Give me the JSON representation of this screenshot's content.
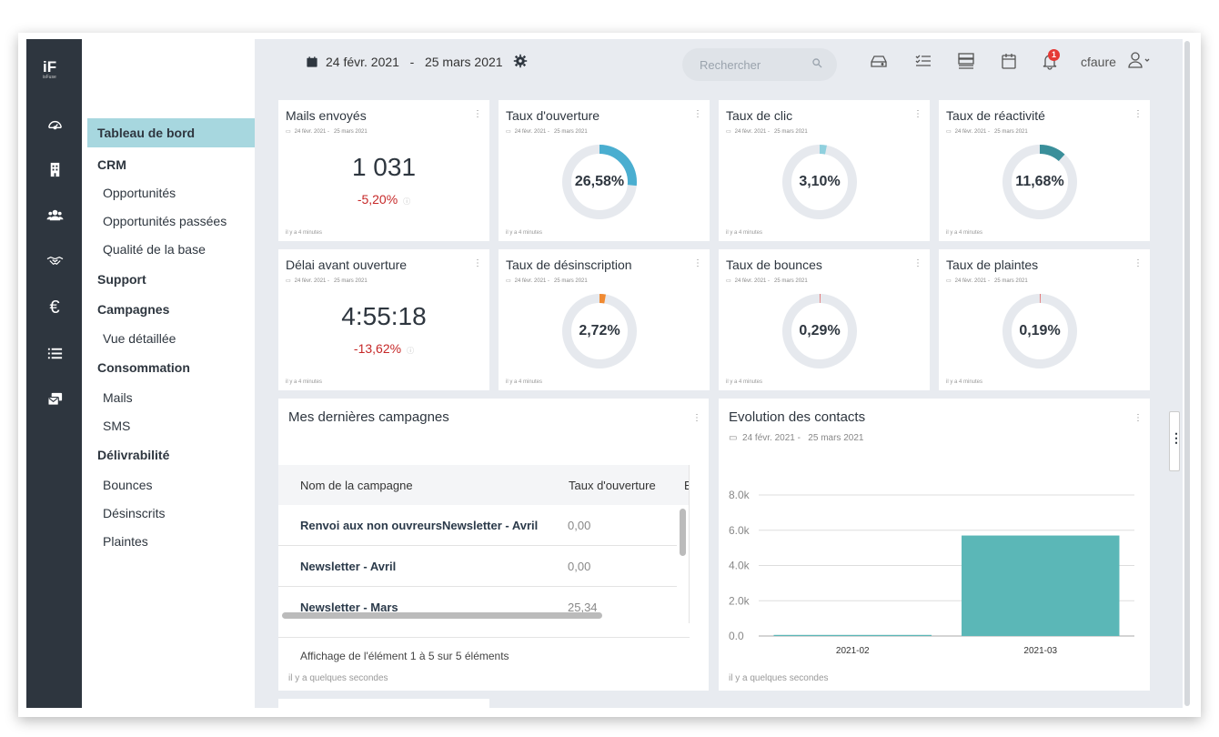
{
  "app": {
    "logo": "iF",
    "logo_sub": "isFuse"
  },
  "sidebar": {
    "items": [
      {
        "label": "Tableau de bord",
        "type": "active"
      },
      {
        "label": "CRM",
        "type": "head"
      },
      {
        "label": "Opportunités",
        "type": "sub"
      },
      {
        "label": "Opportunités passées",
        "type": "sub"
      },
      {
        "label": "Qualité de la base",
        "type": "sub"
      },
      {
        "label": "Support",
        "type": "head"
      },
      {
        "label": "Campagnes",
        "type": "head"
      },
      {
        "label": "Vue détaillée",
        "type": "sub"
      },
      {
        "label": "Consommation",
        "type": "head"
      },
      {
        "label": "Mails",
        "type": "sub"
      },
      {
        "label": "SMS",
        "type": "sub"
      },
      {
        "label": "Délivrabilité",
        "type": "head"
      },
      {
        "label": "Bounces",
        "type": "sub"
      },
      {
        "label": "Désinscrits",
        "type": "sub"
      },
      {
        "label": "Plaintes",
        "type": "sub"
      }
    ]
  },
  "header": {
    "date_from": "24 févr. 2021",
    "date_sep": "-",
    "date_to": "25 mars 2021",
    "search_placeholder": "Rechercher",
    "notifications": "1",
    "user": "cfaure"
  },
  "kpi": {
    "mails": {
      "title": "Mails envoyés",
      "value": "1 031",
      "delta": "-5,20%"
    },
    "ouverture": {
      "title": "Taux d'ouverture",
      "value": "26,58%",
      "fraction": 0.2658,
      "color": "#4aaed0"
    },
    "clic": {
      "title": "Taux de clic",
      "value": "3,10%",
      "fraction": 0.031,
      "color": "#8fd0de"
    },
    "reactivite": {
      "title": "Taux de réactivité",
      "value": "11,68%",
      "fraction": 0.1168,
      "color": "#3a8f9a"
    },
    "delai": {
      "title": "Délai avant ouverture",
      "value": "4:55:18",
      "delta": "-13,62%"
    },
    "desinscription": {
      "title": "Taux de désinscription",
      "value": "2,72%",
      "fraction": 0.0272,
      "color": "#f08a32"
    },
    "bounces": {
      "title": "Taux de bounces",
      "value": "0,29%",
      "fraction": 0.0029,
      "color": "#e57373"
    },
    "plaintes": {
      "title": "Taux de plaintes",
      "value": "0,19%",
      "fraction": 0.0019,
      "color": "#e57373"
    }
  },
  "card_date_from": "24 févr. 2021 -",
  "card_date_to": "25 mars 2021",
  "card_footer": "il y a 4 minutes",
  "campaigns": {
    "title": "Mes dernières campagnes",
    "col_name": "Nom de la campagne",
    "col_open": "Taux d'ouverture",
    "col_more": "E",
    "rows": [
      {
        "name": "Renvoi aux non ouvreursNewsletter - Avril",
        "open": "0,00"
      },
      {
        "name": "Newsletter - Avril",
        "open": "0,00"
      },
      {
        "name": "Newsletter - Mars",
        "open": "25,34"
      }
    ],
    "pagination": "Affichage de l'élément 1 à 5 sur 5 éléments",
    "footer": "il y a quelques secondes"
  },
  "evolution": {
    "title": "Evolution des contacts",
    "date_from": "24 févr. 2021 -",
    "date_to": "25 mars 2021",
    "footer": "il y a quelques secondes"
  },
  "chart_data": {
    "type": "bar",
    "categories": [
      "2021-02",
      "2021-03"
    ],
    "values": [
      30,
      5700
    ],
    "ylim": [
      0,
      8000
    ],
    "yticks": [
      "0.0",
      "2.0k",
      "4.0k",
      "6.0k",
      "8.0k"
    ],
    "color": "#5bb7b7",
    "grid": true,
    "legend": "none"
  }
}
